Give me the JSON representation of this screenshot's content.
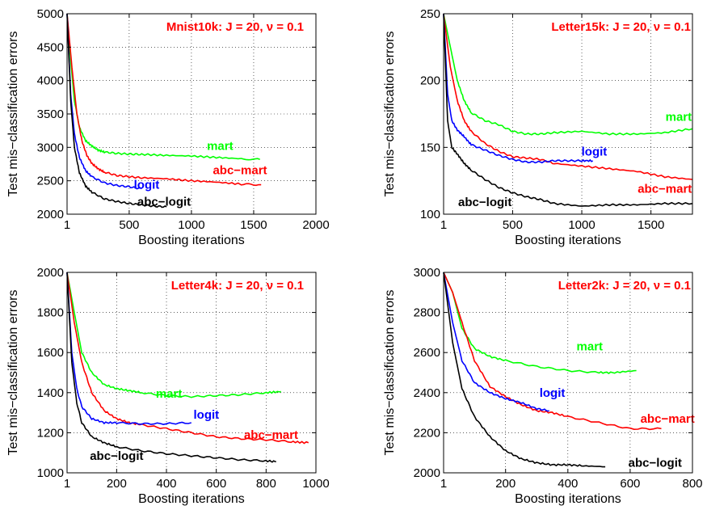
{
  "chart_data": [
    {
      "type": "line",
      "title": "Mnist10k:  J = 20, ν = 0.1",
      "xlabel": "Boosting iterations",
      "ylabel": "Test mis−classification errors",
      "xlim": [
        1,
        2000
      ],
      "ylim": [
        2000,
        5000
      ],
      "xticks": [
        1,
        500,
        1000,
        1500,
        2000
      ],
      "xtick_labels": [
        "1",
        "500",
        "1000",
        "1500",
        "2000"
      ],
      "yticks": [
        2000,
        2500,
        3000,
        3500,
        4000,
        4500,
        5000
      ],
      "ytick_labels": [
        "2000",
        "2500",
        "3000",
        "3500",
        "4000",
        "4500",
        "5000"
      ],
      "grid": true,
      "series": [
        {
          "name": "mart",
          "color": "#00ff00",
          "label_at": [
            1230,
            2960
          ],
          "x": [
            1,
            30,
            60,
            100,
            150,
            200,
            250,
            300,
            400,
            500,
            600,
            800,
            1000,
            1200,
            1400,
            1550
          ],
          "y": [
            5000,
            4300,
            3700,
            3300,
            3100,
            3020,
            2960,
            2930,
            2910,
            2900,
            2895,
            2880,
            2870,
            2850,
            2830,
            2820
          ]
        },
        {
          "name": "abc−mart",
          "color": "#ff0000",
          "label_at": [
            1390,
            2600
          ],
          "x": [
            1,
            40,
            80,
            120,
            160,
            200,
            250,
            300,
            400,
            500,
            600,
            800,
            1000,
            1200,
            1400,
            1560
          ],
          "y": [
            5000,
            4200,
            3500,
            3100,
            2880,
            2760,
            2680,
            2630,
            2580,
            2560,
            2545,
            2530,
            2500,
            2480,
            2450,
            2440
          ]
        },
        {
          "name": "logit",
          "color": "#0000ff",
          "label_at": [
            640,
            2380
          ],
          "x": [
            1,
            30,
            60,
            100,
            150,
            200,
            300,
            400,
            500,
            600
          ],
          "y": [
            5000,
            3800,
            3200,
            2850,
            2650,
            2560,
            2470,
            2430,
            2410,
            2380
          ]
        },
        {
          "name": "abc−logit",
          "color": "#000000",
          "label_at": [
            780,
            2130
          ],
          "x": [
            1,
            30,
            60,
            100,
            150,
            200,
            300,
            400,
            500,
            600,
            700,
            800
          ],
          "y": [
            5000,
            3700,
            3000,
            2620,
            2420,
            2330,
            2230,
            2190,
            2160,
            2140,
            2120,
            2110
          ]
        }
      ]
    },
    {
      "type": "line",
      "title": "Letter15k: J = 20, ν = 0.1",
      "xlabel": "Boosting iterations",
      "ylabel": "Test mis−classification errors",
      "xlim": [
        1,
        1800
      ],
      "ylim": [
        100,
        250
      ],
      "xticks": [
        1,
        500,
        1000,
        1500
      ],
      "xtick_labels": [
        "1",
        "500",
        "1000",
        "1500"
      ],
      "yticks": [
        100,
        150,
        200,
        250
      ],
      "ytick_labels": [
        "100",
        "150",
        "200",
        "250"
      ],
      "grid": true,
      "series": [
        {
          "name": "mart",
          "color": "#00ff00",
          "label_at": [
            1700,
            170
          ],
          "x": [
            1,
            50,
            100,
            150,
            200,
            300,
            400,
            500,
            600,
            700,
            800,
            1000,
            1200,
            1400,
            1600,
            1800
          ],
          "y": [
            250,
            225,
            200,
            185,
            176,
            170,
            167,
            162,
            160,
            160,
            161,
            162,
            160,
            160,
            161,
            164
          ]
        },
        {
          "name": "abc−mart",
          "color": "#ff0000",
          "label_at": [
            1600,
            116
          ],
          "x": [
            1,
            50,
            100,
            150,
            200,
            300,
            400,
            500,
            600,
            700,
            800,
            1000,
            1200,
            1400,
            1600,
            1800
          ],
          "y": [
            250,
            210,
            185,
            170,
            162,
            153,
            147,
            143,
            142,
            141,
            138,
            136,
            134,
            132,
            128,
            126
          ]
        },
        {
          "name": "logit",
          "color": "#0000ff",
          "label_at": [
            1090,
            144
          ],
          "x": [
            1,
            30,
            60,
            100,
            150,
            200,
            300,
            400,
            500,
            600,
            700,
            800,
            900,
            1000,
            1080
          ],
          "y": [
            250,
            190,
            170,
            163,
            158,
            152,
            148,
            144,
            141,
            139,
            139,
            140,
            140,
            140,
            140
          ]
        },
        {
          "name": "abc−logit",
          "color": "#000000",
          "label_at": [
            300,
            106
          ],
          "x": [
            1,
            30,
            60,
            100,
            150,
            200,
            300,
            400,
            500,
            600,
            700,
            800,
            1000,
            1200,
            1400,
            1600,
            1800
          ],
          "y": [
            250,
            170,
            150,
            145,
            138,
            133,
            126,
            120,
            116,
            113,
            111,
            108,
            106,
            107,
            107,
            108,
            108
          ]
        }
      ]
    },
    {
      "type": "line",
      "title": "Letter4k: J = 20, ν = 0.1",
      "xlabel": "Boosting iterations",
      "ylabel": "Test mis−classification errors",
      "xlim": [
        1,
        1000
      ],
      "ylim": [
        1000,
        2000
      ],
      "xticks": [
        1,
        200,
        400,
        600,
        800,
        1000
      ],
      "xtick_labels": [
        "1",
        "200",
        "400",
        "600",
        "800",
        "1000"
      ],
      "yticks": [
        1000,
        1200,
        1400,
        1600,
        1800,
        2000
      ],
      "ytick_labels": [
        "1000",
        "1200",
        "1400",
        "1600",
        "1800",
        "2000"
      ],
      "grid": true,
      "series": [
        {
          "name": "mart",
          "color": "#00ff00",
          "label_at": [
            410,
            1375
          ],
          "x": [
            1,
            30,
            60,
            100,
            150,
            200,
            250,
            300,
            400,
            500,
            600,
            700,
            800,
            860
          ],
          "y": [
            2000,
            1800,
            1600,
            1500,
            1440,
            1420,
            1410,
            1400,
            1385,
            1380,
            1385,
            1390,
            1400,
            1405
          ]
        },
        {
          "name": "abc−mart",
          "color": "#ff0000",
          "label_at": [
            820,
            1170
          ],
          "x": [
            1,
            30,
            60,
            100,
            150,
            200,
            250,
            300,
            400,
            500,
            600,
            700,
            800,
            900,
            970
          ],
          "y": [
            2000,
            1750,
            1550,
            1400,
            1310,
            1270,
            1250,
            1240,
            1220,
            1200,
            1180,
            1170,
            1165,
            1155,
            1150
          ]
        },
        {
          "name": "logit",
          "color": "#0000ff",
          "label_at": [
            560,
            1270
          ],
          "x": [
            1,
            20,
            40,
            60,
            100,
            150,
            200,
            300,
            400,
            500
          ],
          "y": [
            2000,
            1600,
            1420,
            1330,
            1270,
            1250,
            1250,
            1245,
            1245,
            1250
          ]
        },
        {
          "name": "abc−logit",
          "color": "#000000",
          "label_at": [
            200,
            1065
          ],
          "x": [
            1,
            20,
            40,
            60,
            100,
            150,
            200,
            300,
            400,
            500,
            600,
            700,
            800,
            840
          ],
          "y": [
            2000,
            1550,
            1350,
            1250,
            1180,
            1150,
            1130,
            1110,
            1095,
            1085,
            1075,
            1065,
            1060,
            1055
          ]
        }
      ]
    },
    {
      "type": "line",
      "title": "Letter2k: J = 20, ν = 0.1",
      "xlabel": "Boosting iterations",
      "ylabel": "Test mis−classification errors",
      "xlim": [
        1,
        800
      ],
      "ylim": [
        2000,
        3000
      ],
      "xticks": [
        1,
        200,
        400,
        600,
        800
      ],
      "xtick_labels": [
        "1",
        "200",
        "400",
        "600",
        "800"
      ],
      "yticks": [
        2000,
        2200,
        2400,
        2600,
        2800,
        3000
      ],
      "ytick_labels": [
        "2000",
        "2200",
        "2400",
        "2600",
        "2800",
        "3000"
      ],
      "grid": true,
      "series": [
        {
          "name": "mart",
          "color": "#00ff00",
          "label_at": [
            470,
            2610
          ],
          "x": [
            1,
            30,
            60,
            100,
            150,
            200,
            300,
            400,
            500,
            550,
            620
          ],
          "y": [
            3000,
            2900,
            2720,
            2620,
            2580,
            2560,
            2530,
            2510,
            2500,
            2500,
            2510
          ]
        },
        {
          "name": "abc−mart",
          "color": "#ff0000",
          "label_at": [
            720,
            2250
          ],
          "x": [
            1,
            30,
            60,
            100,
            150,
            200,
            250,
            300,
            350,
            400,
            500,
            600,
            700
          ],
          "y": [
            3000,
            2900,
            2750,
            2560,
            2430,
            2380,
            2340,
            2310,
            2300,
            2280,
            2250,
            2220,
            2220
          ]
        },
        {
          "name": "logit",
          "color": "#0000ff",
          "label_at": [
            350,
            2380
          ],
          "x": [
            1,
            30,
            60,
            100,
            150,
            200,
            250,
            300,
            340
          ],
          "y": [
            3000,
            2750,
            2560,
            2450,
            2400,
            2370,
            2350,
            2320,
            2310
          ]
        },
        {
          "name": "abc−logit",
          "color": "#000000",
          "label_at": [
            680,
            2030
          ],
          "x": [
            1,
            30,
            60,
            100,
            150,
            200,
            250,
            300,
            350,
            400,
            450,
            520
          ],
          "y": [
            3000,
            2650,
            2420,
            2280,
            2180,
            2110,
            2070,
            2050,
            2040,
            2040,
            2035,
            2030
          ]
        }
      ]
    }
  ]
}
